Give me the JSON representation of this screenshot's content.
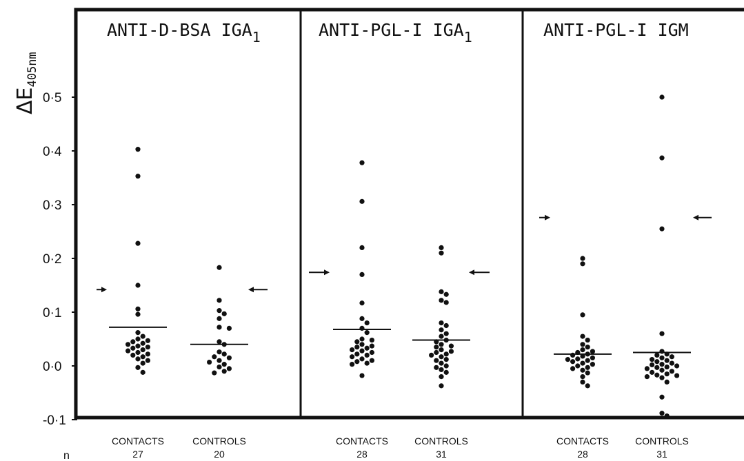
{
  "chart_data": {
    "type": "scatter",
    "ylabel": "ΔE",
    "ylabel_subscript": "405nm",
    "ylim": [
      -0.1,
      0.55
    ],
    "yticks": [
      {
        "value": 0.5,
        "label": "0·5"
      },
      {
        "value": 0.4,
        "label": "0·4"
      },
      {
        "value": 0.3,
        "label": "0·3"
      },
      {
        "value": 0.2,
        "label": "0·2"
      },
      {
        "value": 0.1,
        "label": "0·1"
      },
      {
        "value": 0.0,
        "label": "0·0"
      },
      {
        "value": -0.1,
        "label": "-0·1"
      }
    ],
    "n_label": "n",
    "grid": false,
    "panels": [
      {
        "title": "ANTI-D-BSA IGA",
        "title_subscript": "1",
        "cutoff": 0.142,
        "groups": [
          {
            "name": "CONTACTS",
            "n": "27",
            "mean": 0.072,
            "values": [
              0.403,
              0.353,
              0.228,
              0.15,
              0.106,
              0.096,
              0.062,
              0.055,
              0.05,
              0.047,
              0.045,
              0.042,
              0.04,
              0.037,
              0.035,
              0.033,
              0.03,
              0.028,
              0.025,
              0.022,
              0.02,
              0.017,
              0.013,
              0.01,
              0.005,
              -0.003,
              -0.012
            ]
          },
          {
            "name": "CONTROLS",
            "n": "20",
            "mean": 0.04,
            "values": [
              0.183,
              0.122,
              0.103,
              0.097,
              0.088,
              0.072,
              0.07,
              0.045,
              0.04,
              0.026,
              0.022,
              0.017,
              0.015,
              0.01,
              0.007,
              0.003,
              -0.002,
              -0.005,
              -0.01,
              -0.013
            ]
          }
        ]
      },
      {
        "title": "ANTI-PGL-I IGA",
        "title_subscript": "1",
        "cutoff": 0.174,
        "groups": [
          {
            "name": "CONTACTS",
            "n": "28",
            "mean": 0.068,
            "values": [
              0.378,
              0.306,
              0.22,
              0.17,
              0.117,
              0.088,
              0.08,
              0.07,
              0.062,
              0.05,
              0.048,
              0.045,
              0.04,
              0.037,
              0.035,
              0.033,
              0.03,
              0.028,
              0.025,
              0.022,
              0.02,
              0.017,
              0.013,
              0.01,
              0.008,
              0.005,
              0.003,
              -0.018
            ]
          },
          {
            "name": "CONTROLS",
            "n": "31",
            "mean": 0.048,
            "values": [
              0.22,
              0.21,
              0.138,
              0.133,
              0.122,
              0.118,
              0.08,
              0.075,
              0.067,
              0.06,
              0.055,
              0.048,
              0.045,
              0.04,
              0.037,
              0.035,
              0.03,
              0.027,
              0.025,
              0.022,
              0.02,
              0.017,
              0.012,
              0.01,
              0.005,
              0.0,
              -0.003,
              -0.007,
              -0.012,
              -0.02,
              -0.037
            ]
          }
        ]
      },
      {
        "title": "ANTI-PGL-I IGM",
        "title_subscript": "",
        "cutoff": 0.276,
        "groups": [
          {
            "name": "CONTACTS",
            "n": "28",
            "mean": 0.022,
            "values": [
              0.2,
              0.19,
              0.095,
              0.055,
              0.048,
              0.04,
              0.035,
              0.03,
              0.027,
              0.025,
              0.022,
              0.02,
              0.018,
              0.015,
              0.013,
              0.012,
              0.01,
              0.008,
              0.005,
              0.003,
              0.0,
              -0.003,
              -0.005,
              -0.008,
              -0.013,
              -0.02,
              -0.03,
              -0.037
            ]
          },
          {
            "name": "CONTROLS",
            "n": "31",
            "mean": 0.025,
            "values": [
              0.5,
              0.387,
              0.255,
              0.06,
              0.027,
              0.022,
              0.02,
              0.017,
              0.015,
              0.012,
              0.01,
              0.008,
              0.005,
              0.003,
              0.002,
              0.0,
              -0.002,
              -0.003,
              -0.005,
              -0.008,
              -0.01,
              -0.012,
              -0.015,
              -0.017,
              -0.018,
              -0.02,
              -0.022,
              -0.03,
              -0.058,
              -0.088,
              -0.093
            ]
          }
        ]
      }
    ]
  }
}
